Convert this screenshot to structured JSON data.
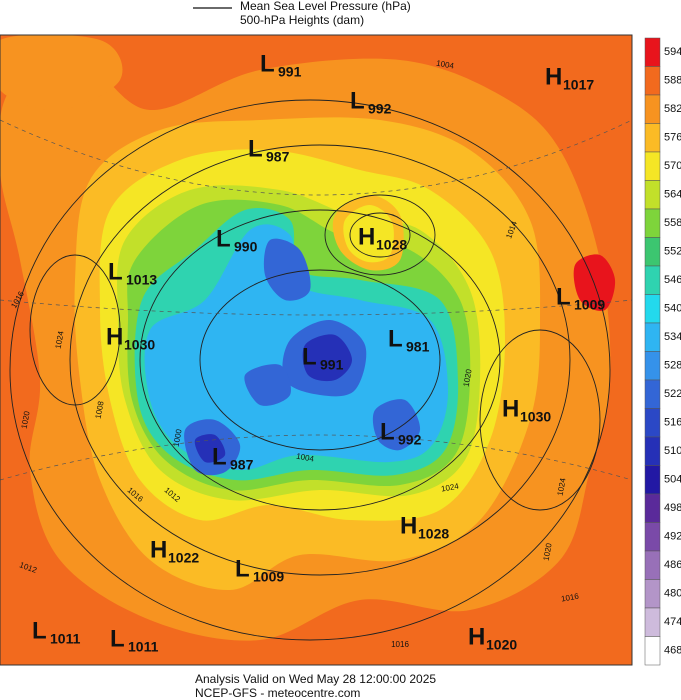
{
  "header": {
    "legend": [
      "Mean Sea Level Pressure (hPa)",
      "500-hPa Heights (dam)"
    ]
  },
  "centers": [
    {
      "type": "L",
      "value": "991"
    },
    {
      "type": "H",
      "value": "1017"
    },
    {
      "type": "L",
      "value": "992"
    },
    {
      "type": "L",
      "value": "987"
    },
    {
      "type": "H",
      "value": "1028"
    },
    {
      "type": "L",
      "value": "990"
    },
    {
      "type": "L",
      "value": "1013"
    },
    {
      "type": "L",
      "value": "1009"
    },
    {
      "type": "H",
      "value": "1030"
    },
    {
      "type": "L",
      "value": "981"
    },
    {
      "type": "L",
      "value": "991"
    },
    {
      "type": "H",
      "value": "1030"
    },
    {
      "type": "L",
      "value": "992"
    },
    {
      "type": "L",
      "value": "987"
    },
    {
      "type": "H",
      "value": "1028"
    },
    {
      "type": "H",
      "value": "1022"
    },
    {
      "type": "L",
      "value": "1009"
    },
    {
      "type": "L",
      "value": "1011"
    },
    {
      "type": "L",
      "value": "1011"
    },
    {
      "type": "H",
      "value": "1020"
    }
  ],
  "contour_labels": [
    "1004",
    "1014",
    "1016",
    "1024",
    "1020",
    "1008",
    "1000",
    "1016",
    "1012",
    "1004",
    "1024",
    "1020",
    "1024",
    "1012",
    "1016",
    "1016",
    "1020"
  ],
  "colorbar": {
    "ticks": [
      594,
      588,
      582,
      576,
      570,
      564,
      558,
      552,
      546,
      540,
      534,
      528,
      522,
      516,
      510,
      504,
      498,
      492,
      486,
      480,
      474,
      468
    ],
    "colors": [
      "#e8141c",
      "#f26a1e",
      "#f79320",
      "#fbbb25",
      "#f5e625",
      "#c2e02a",
      "#7ed43b",
      "#3cc670",
      "#2fd3b0",
      "#23d9ed",
      "#2fb5f2",
      "#3592ea",
      "#3366d6",
      "#2b48c6",
      "#2530b7",
      "#2218a4",
      "#5a2a9a",
      "#7a4aa8",
      "#9870b8",
      "#b395c8",
      "#cebbdc",
      "#ffffff"
    ]
  },
  "footer": [
    "Analysis Valid on Wed May 28 12:00:00 2025",
    "NCEP-GFS  - meteocentre.com"
  ]
}
